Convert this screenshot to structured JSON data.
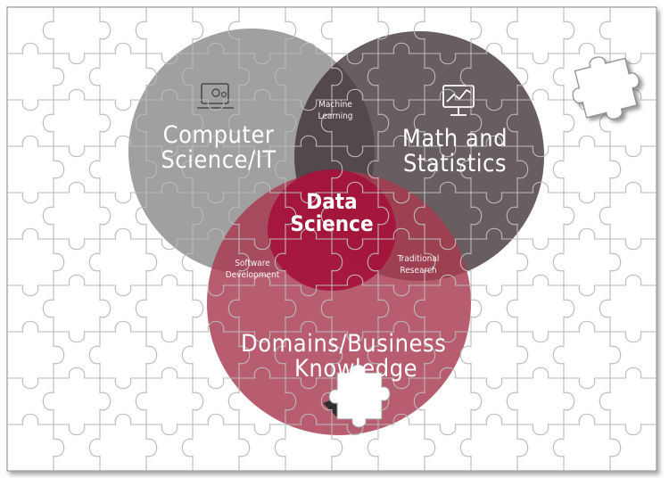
{
  "diagram": {
    "sets": [
      {
        "key": "cs",
        "line1": "Computer",
        "line2": "Science/IT",
        "color": "#8f8f8f",
        "icon": "computer-gear-icon"
      },
      {
        "key": "math",
        "line1": "Math and",
        "line2": "Statistics",
        "color": "#3d3136",
        "icon": "chart-monitor-icon"
      },
      {
        "key": "domain",
        "line1": "Domains/Business",
        "line2": "Knowledge",
        "color": "#a8394f",
        "icon": "speech-bubble-icon"
      }
    ],
    "overlaps": {
      "cs_math": {
        "line1": "Machine",
        "line2": "Learning"
      },
      "math_domain": {
        "line1": "Traditional",
        "line2": "Research"
      },
      "cs_domain": {
        "line1": "Software",
        "line2": "Development"
      }
    },
    "center": {
      "line1": "Data",
      "line2": "Science",
      "color": "#a5123a"
    }
  },
  "colors": {
    "puzzle_line": "#b9b9b9",
    "missing_piece_fill": "#ffffff",
    "shadow": "#777777"
  }
}
